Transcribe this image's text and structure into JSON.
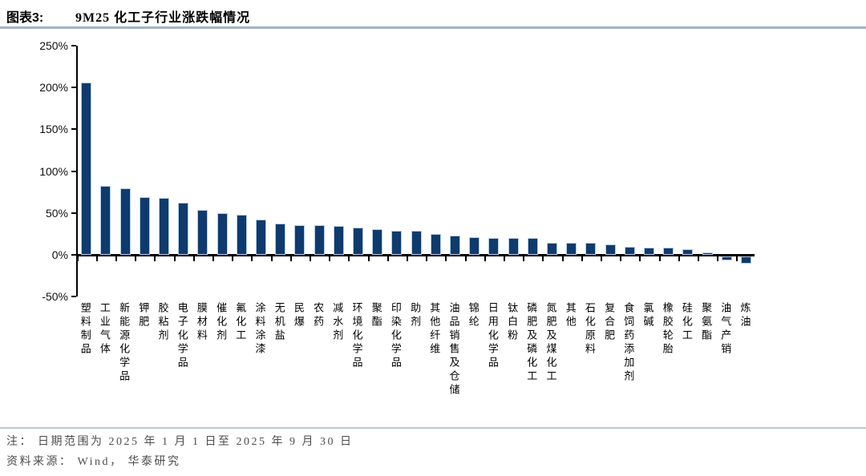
{
  "header": {
    "figure_label": "图表3:",
    "title": "9M25 化工子行业涨跌幅情况"
  },
  "footer": {
    "note": "注： 日期范围为 2025 年 1 月 1 日至 2025 年 9 月 30 日",
    "source": "资料来源： Wind， 华泰研究"
  },
  "colors": {
    "bar_fill": "#0e3a6e",
    "bar_border": "#b3cbe4",
    "axis": "#000000",
    "header_rule": "#9fb4c7",
    "footer_rule": "#b7c8d8",
    "note_text": "#4d4d4d"
  },
  "chart_data": {
    "type": "bar",
    "title": "9M25 化工子行业涨跌幅情况",
    "xlabel": "",
    "ylabel": "",
    "ylim": [
      -50,
      250
    ],
    "yticks": [
      250,
      200,
      150,
      100,
      50,
      0,
      -50
    ],
    "ytick_suffix": "%",
    "grid": false,
    "legend": false,
    "categories": [
      "塑料制品",
      "工业气体",
      "新能源化学品",
      "钾肥",
      "胶粘剂",
      "电子化学品",
      "膜材料",
      "催化剂",
      "氟化工",
      "涂料涂漆",
      "无机盐",
      "民爆",
      "农药",
      "减水剂",
      "环境化学品",
      "聚酯",
      "印染化学品",
      "助剂",
      "其他纤维",
      "油品销售及仓储",
      "锦纶",
      "日用化学品",
      "钛白粉",
      "磷肥及磷化工",
      "氮肥及煤化工",
      "其他",
      "石化原料",
      "复合肥",
      "食饲药添加剂",
      "氯碱",
      "橡胶轮胎",
      "硅化工",
      "聚氨酯",
      "油气产销",
      "炼油"
    ],
    "values": [
      206,
      82,
      79,
      69,
      68,
      62,
      54,
      50,
      48,
      42,
      37,
      35,
      35,
      34,
      33,
      31,
      29,
      29,
      25,
      23,
      21,
      20,
      20,
      20,
      14,
      14,
      14,
      12,
      10,
      9,
      9,
      7,
      3,
      -5,
      -9
    ]
  }
}
